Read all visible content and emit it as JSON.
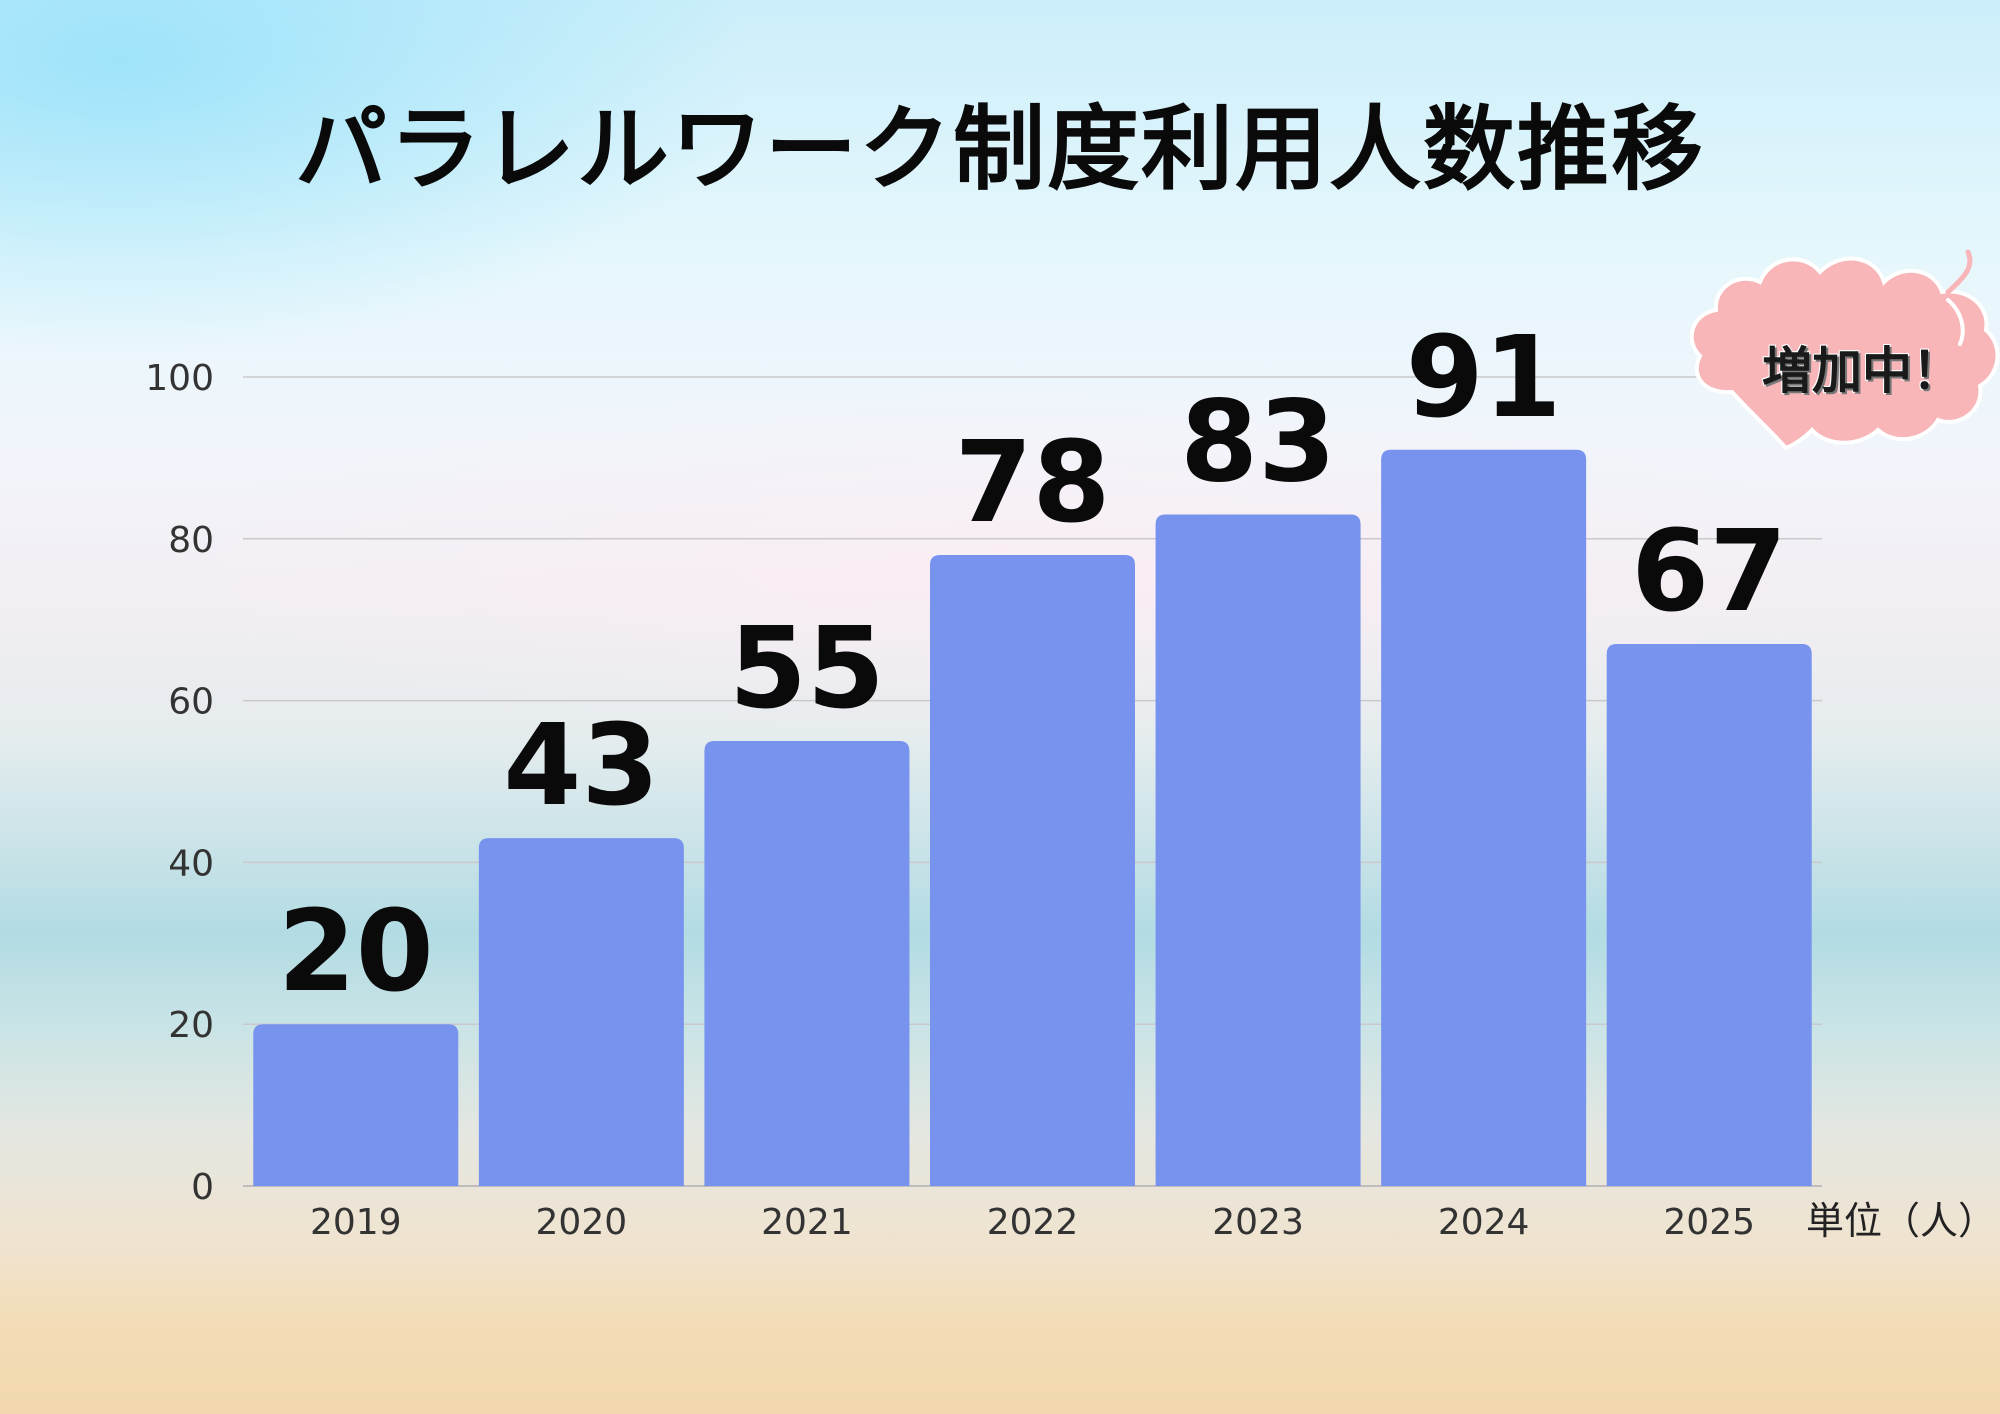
{
  "chart_data": {
    "type": "bar",
    "title": "パラレルワーク制度利用人数推移",
    "categories": [
      "2019",
      "2020",
      "2021",
      "2022",
      "2023",
      "2024",
      "2025"
    ],
    "values": [
      20,
      43,
      55,
      78,
      83,
      91,
      67
    ],
    "ylim": [
      0,
      100
    ],
    "yticks": [
      0,
      20,
      40,
      60,
      80,
      100
    ],
    "grid": true,
    "unit_label": "単位（人）",
    "annotation": "増加中！",
    "bar_color": "#7793ee",
    "gridline_color": "#c9c9c9"
  }
}
